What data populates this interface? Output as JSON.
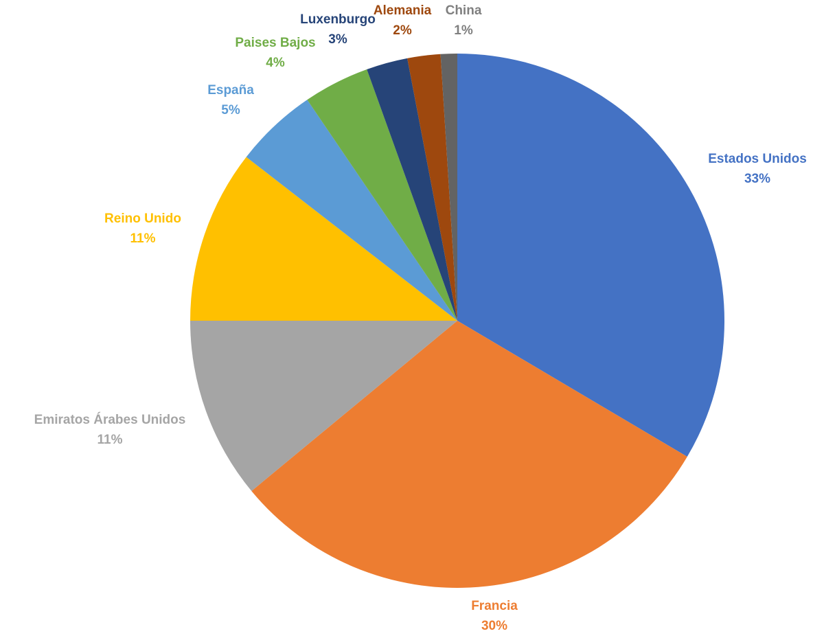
{
  "chart_data": {
    "type": "pie",
    "categories": [
      "Estados Unidos",
      "Francia",
      "Emiratos Árabes Unidos",
      "Reino Unido",
      "España",
      "Paises Bajos",
      "Luxenburgo",
      "Alemania",
      "China"
    ],
    "values": [
      33.5,
      30.5,
      11,
      10.5,
      5,
      4,
      2.5,
      2,
      1
    ],
    "percent_labels": [
      "33%",
      "30%",
      "11%",
      "11%",
      "5%",
      "4%",
      "3%",
      "2%",
      "1%"
    ],
    "colors": [
      "#4472C4",
      "#ED7D31",
      "#A5A5A5",
      "#FFC000",
      "#5B9BD5",
      "#70AD47",
      "#264478",
      "#9E480E",
      "#636363"
    ],
    "label_colors": [
      "#4472C4",
      "#ED7D31",
      "#A5A5A5",
      "#FFC000",
      "#5B9BD5",
      "#70AD47",
      "#264478",
      "#9E480E",
      "#7F7F7F"
    ],
    "start_angle": "12 o'clock",
    "direction": "clockwise",
    "legend": "none",
    "title": ""
  }
}
